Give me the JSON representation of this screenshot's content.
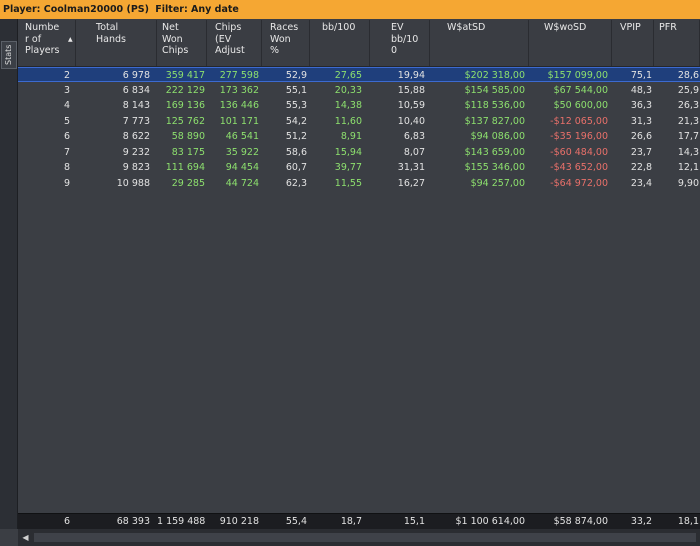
{
  "title": {
    "player_label": "Player: Coolman20000 (PS)",
    "filter_label": "Filter: Any date"
  },
  "side_tab": {
    "label": "Stats"
  },
  "columns": [
    {
      "id": "players",
      "label": "Number of Players",
      "sorted": "ascending"
    },
    {
      "id": "hands",
      "label": "Total Hands"
    },
    {
      "id": "net",
      "label": "Net Won Chips"
    },
    {
      "id": "ev",
      "label": "Chips (EV Adjust"
    },
    {
      "id": "races",
      "label": "Races Won %"
    },
    {
      "id": "bb",
      "label": "bb/100"
    },
    {
      "id": "evbb",
      "label": "EV bb/100"
    },
    {
      "id": "wsd",
      "label": "W$atSD"
    },
    {
      "id": "wwsd",
      "label": "W$woSD"
    },
    {
      "id": "vpip",
      "label": "VPIP"
    },
    {
      "id": "pfr",
      "label": "PFR"
    }
  ],
  "header_lines": {
    "players": [
      "Numbe",
      "r of",
      "Players"
    ],
    "hands": [
      "Total",
      "Hands"
    ],
    "net": [
      "Net",
      "Won",
      "Chips"
    ],
    "ev": [
      "Chips",
      "(EV",
      "Adjust"
    ],
    "races": [
      "Races",
      "Won",
      "%"
    ],
    "bb": [
      "bb/100"
    ],
    "evbb": [
      "EV",
      "bb/10",
      "0"
    ],
    "wsd": [
      "W$atSD"
    ],
    "wwsd": [
      "W$woSD"
    ],
    "vpip": [
      "VPIP"
    ],
    "pfr": [
      "PFR"
    ]
  },
  "rows": [
    {
      "players": "2",
      "hands": "6 978",
      "net": "359 417",
      "ev": "277 598",
      "races": "52,9",
      "bb": "27,65",
      "evbb": "19,94",
      "wsd": "$202 318,00",
      "wwsd": "$157 099,00",
      "vpip": "75,1",
      "pfr": "28,6",
      "selected": true
    },
    {
      "players": "3",
      "hands": "6 834",
      "net": "222 129",
      "ev": "173 362",
      "races": "55,1",
      "bb": "20,33",
      "evbb": "15,88",
      "wsd": "$154 585,00",
      "wwsd": "$67 544,00",
      "vpip": "48,3",
      "pfr": "25,9"
    },
    {
      "players": "4",
      "hands": "8 143",
      "net": "169 136",
      "ev": "136 446",
      "races": "55,3",
      "bb": "14,38",
      "evbb": "10,59",
      "wsd": "$118 536,00",
      "wwsd": "$50 600,00",
      "vpip": "36,3",
      "pfr": "26,3"
    },
    {
      "players": "5",
      "hands": "7 773",
      "net": "125 762",
      "ev": "101 171",
      "races": "54,2",
      "bb": "11,60",
      "evbb": "10,40",
      "wsd": "$137 827,00",
      "wwsd": "-$12 065,00",
      "vpip": "31,3",
      "pfr": "21,3"
    },
    {
      "players": "6",
      "hands": "8 622",
      "net": "58 890",
      "ev": "46 541",
      "races": "51,2",
      "bb": "8,91",
      "evbb": "6,83",
      "wsd": "$94 086,00",
      "wwsd": "-$35 196,00",
      "vpip": "26,6",
      "pfr": "17,7"
    },
    {
      "players": "7",
      "hands": "9 232",
      "net": "83 175",
      "ev": "35 922",
      "races": "58,6",
      "bb": "15,94",
      "evbb": "8,07",
      "wsd": "$143 659,00",
      "wwsd": "-$60 484,00",
      "vpip": "23,7",
      "pfr": "14,3"
    },
    {
      "players": "8",
      "hands": "9 823",
      "net": "111 694",
      "ev": "94 454",
      "races": "60,7",
      "bb": "39,77",
      "evbb": "31,31",
      "wsd": "$155 346,00",
      "wwsd": "-$43 652,00",
      "vpip": "22,8",
      "pfr": "12,1"
    },
    {
      "players": "9",
      "hands": "10 988",
      "net": "29 285",
      "ev": "44 724",
      "races": "62,3",
      "bb": "11,55",
      "evbb": "16,27",
      "wsd": "$94 257,00",
      "wwsd": "-$64 972,00",
      "vpip": "23,4",
      "pfr": "9,90"
    }
  ],
  "totals": {
    "players": "6",
    "hands": "68 393",
    "net": "1 159 488",
    "ev": "910 218",
    "races": "55,4",
    "bb": "18,7",
    "evbb": "15,1",
    "wsd": "$1 100 614,00",
    "wwsd": "$58 874,00",
    "vpip": "33,2",
    "pfr": "18,1"
  },
  "colors": {
    "title_bar": "#f5a733",
    "positive": "#8de06e",
    "negative": "#e8706a",
    "selected_row": "#1f3f7c",
    "background": "#3b3e44"
  },
  "icons": {
    "scroll_left": "left-arrow-icon",
    "sort": "sort-ascending-icon"
  }
}
